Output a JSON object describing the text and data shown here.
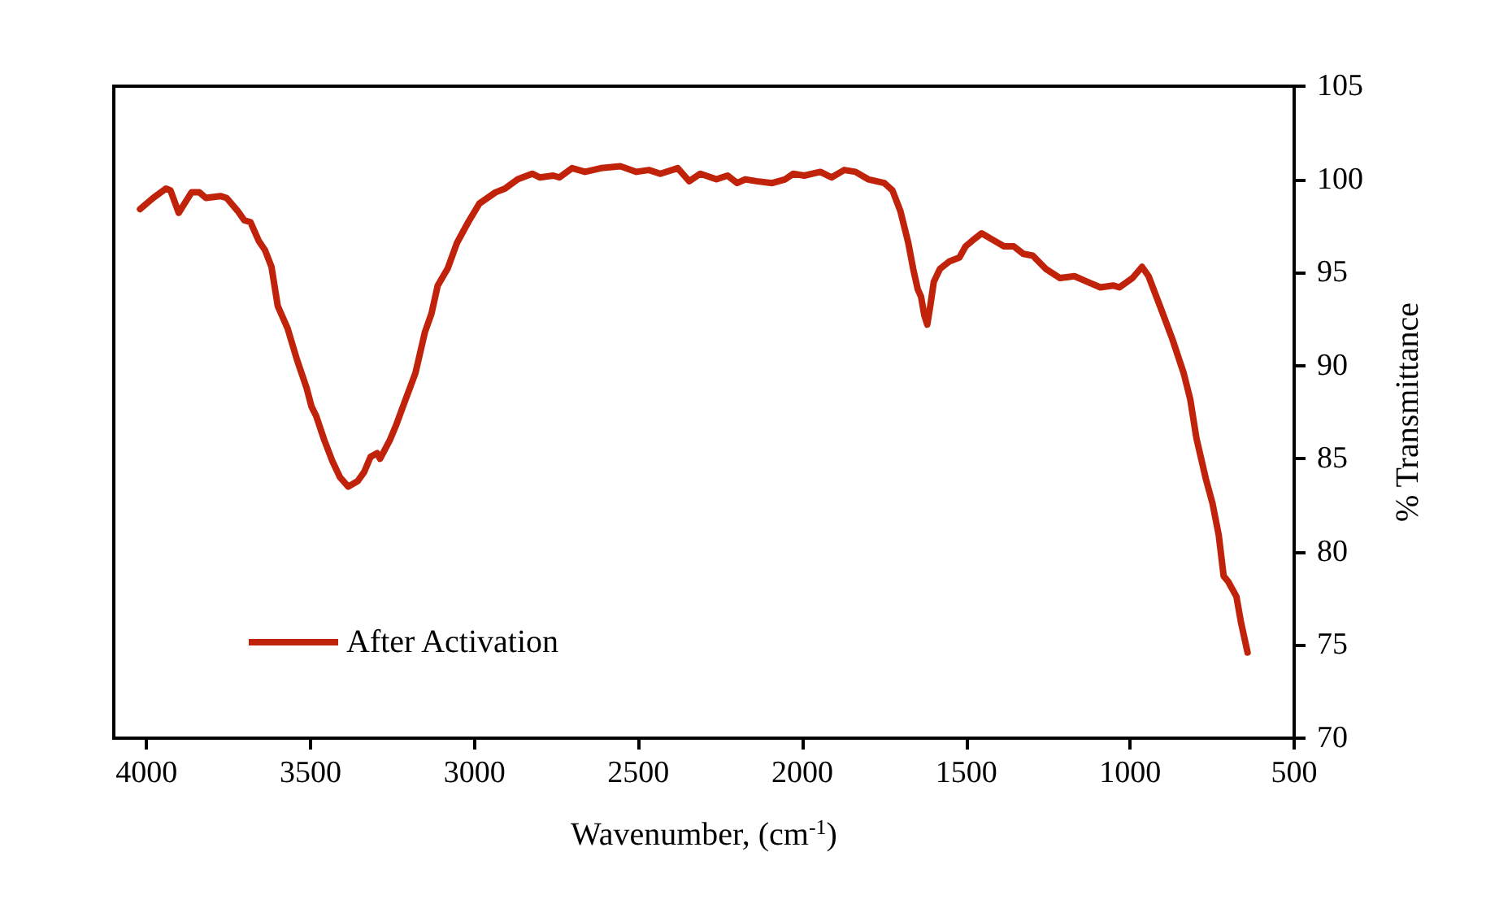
{
  "chart_data": {
    "type": "line",
    "xlabel": "Wavenumber, (cm$^{-1}$)",
    "ylabel": "% Transmittance",
    "xlim": [
      4100,
      500
    ],
    "xticks": [
      4000,
      3500,
      3000,
      2500,
      2000,
      1500,
      1000,
      500
    ],
    "ylim": [
      70,
      105
    ],
    "yticks": [
      70,
      75,
      80,
      85,
      90,
      95,
      100,
      105
    ],
    "grid": false,
    "legend": "left",
    "marker": "none",
    "line_style": "solid",
    "series": [
      {
        "name": "After Activation",
        "color": "#c0220a",
        "x": [
          4020,
          3980,
          3941,
          3927,
          3902,
          3863,
          3839,
          3819,
          3775,
          3756,
          3722,
          3702,
          3683,
          3658,
          3639,
          3619,
          3600,
          3570,
          3541,
          3512,
          3497,
          3483,
          3458,
          3434,
          3410,
          3385,
          3356,
          3336,
          3317,
          3297,
          3288,
          3258,
          3239,
          3214,
          3180,
          3151,
          3131,
          3112,
          3082,
          3053,
          3019,
          2985,
          2936,
          2907,
          2868,
          2824,
          2800,
          2760,
          2741,
          2702,
          2663,
          2614,
          2555,
          2506,
          2468,
          2433,
          2380,
          2345,
          2311,
          2262,
          2228,
          2199,
          2174,
          2140,
          2092,
          2052,
          2028,
          1994,
          1945,
          1911,
          1872,
          1838,
          1799,
          1750,
          1725,
          1701,
          1677,
          1662,
          1648,
          1638,
          1628,
          1619,
          1609,
          1599,
          1580,
          1551,
          1521,
          1502,
          1482,
          1453,
          1424,
          1385,
          1355,
          1326,
          1297,
          1258,
          1214,
          1170,
          1131,
          1091,
          1052,
          1033,
          993,
          964,
          944,
          905,
          871,
          837,
          817,
          798,
          769,
          749,
          730,
          715,
          701,
          676,
          662,
          642
        ],
        "values": [
          98.4,
          99.0,
          99.5,
          99.4,
          98.2,
          99.3,
          99.3,
          99.0,
          99.1,
          99.0,
          98.3,
          97.8,
          97.7,
          96.7,
          96.2,
          95.3,
          93.2,
          92.0,
          90.3,
          88.8,
          87.8,
          87.3,
          86.0,
          84.9,
          84.0,
          83.5,
          83.8,
          84.3,
          85.1,
          85.3,
          85.0,
          86.0,
          86.8,
          88.0,
          89.6,
          91.8,
          92.8,
          94.3,
          95.2,
          96.6,
          97.7,
          98.7,
          99.3,
          99.5,
          100.0,
          100.3,
          100.1,
          100.2,
          100.1,
          100.6,
          100.4,
          100.6,
          100.7,
          100.4,
          100.5,
          100.3,
          100.6,
          99.9,
          100.3,
          100.0,
          100.2,
          99.8,
          100.0,
          99.9,
          99.8,
          100.0,
          100.3,
          100.2,
          100.4,
          100.1,
          100.5,
          100.4,
          100.0,
          99.8,
          99.4,
          98.3,
          96.6,
          95.2,
          94.1,
          93.7,
          92.7,
          92.2,
          93.3,
          94.5,
          95.2,
          95.6,
          95.8,
          96.4,
          96.7,
          97.1,
          96.8,
          96.4,
          96.4,
          96.0,
          95.9,
          95.2,
          94.7,
          94.8,
          94.5,
          94.2,
          94.3,
          94.2,
          94.7,
          95.3,
          94.8,
          93.0,
          91.4,
          89.6,
          88.2,
          86.1,
          83.9,
          82.6,
          80.9,
          78.7,
          78.4,
          77.6,
          76.2,
          74.6
        ]
      }
    ]
  }
}
